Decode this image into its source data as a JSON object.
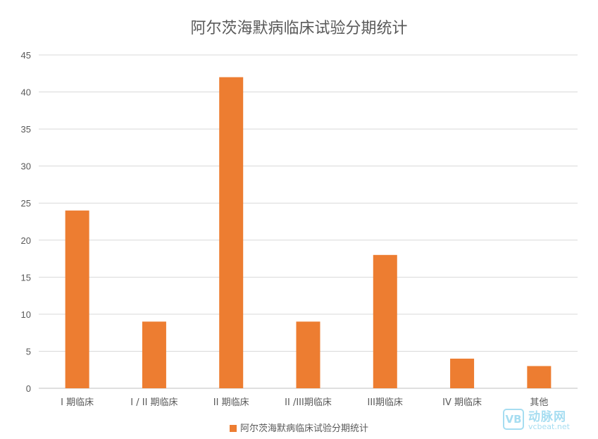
{
  "chart_data": {
    "type": "bar",
    "title": "阿尔茨海默病临床试验分期统计",
    "categories": [
      "I 期临床",
      "I / II 期临床",
      "II 期临床",
      "II /III期临床",
      "III期临床",
      "IV 期临床",
      "其他"
    ],
    "series": [
      {
        "name": "阿尔茨海默病临床试验分期统计",
        "values": [
          24,
          9,
          42,
          9,
          18,
          4,
          3
        ]
      }
    ],
    "ylim": [
      0,
      45
    ],
    "yticks": [
      0,
      5,
      10,
      15,
      20,
      25,
      30,
      35,
      40,
      45
    ],
    "grid": true,
    "legend_position": "bottom",
    "bar_color": "#ed7d31"
  },
  "watermark": {
    "logo": "VB",
    "name": "动脉网",
    "url": "vcbeat.net"
  }
}
